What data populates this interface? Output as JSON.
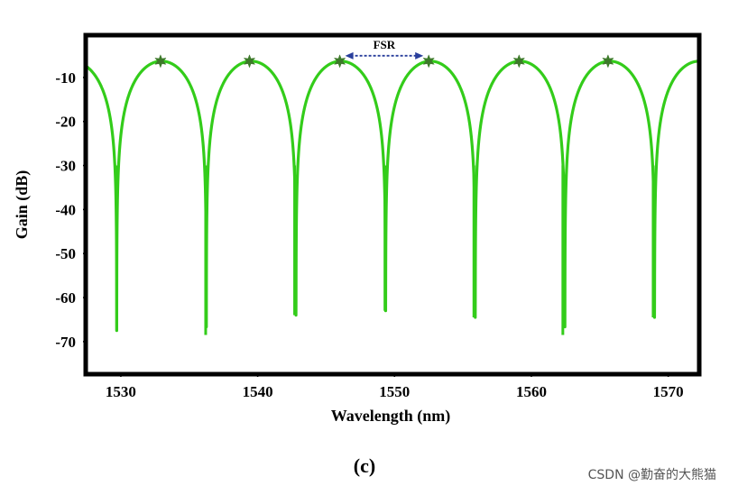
{
  "chart_data": {
    "type": "line",
    "xlabel": "Wavelength (nm)",
    "ylabel": "Gain (dB)",
    "xlim": [
      1527.5,
      1572.2
    ],
    "ylim": [
      -77.2,
      -0.6
    ],
    "xticks": [
      1530,
      1540,
      1550,
      1560,
      1570
    ],
    "yticks": [
      -10,
      -20,
      -30,
      -40,
      -50,
      -60,
      -70
    ],
    "fsr_nm": 6.55,
    "peak_gain_db": -6.3,
    "notches": [
      {
        "x": 1529.7,
        "y": -67.5
      },
      {
        "x": 1536.2,
        "y": -68.5
      },
      {
        "x": 1542.7,
        "y": -64.0
      },
      {
        "x": 1549.3,
        "y": -63.0
      },
      {
        "x": 1555.8,
        "y": -64.5
      },
      {
        "x": 1562.3,
        "y": -68.5
      },
      {
        "x": 1568.9,
        "y": -64.5
      }
    ],
    "peak_markers": [
      {
        "x": 1532.9,
        "y": -6.3
      },
      {
        "x": 1539.4,
        "y": -6.3
      },
      {
        "x": 1546.0,
        "y": -6.3
      },
      {
        "x": 1552.5,
        "y": -6.3
      },
      {
        "x": 1559.1,
        "y": -6.3
      },
      {
        "x": 1565.6,
        "y": -6.3
      }
    ],
    "annotation": {
      "text": "FSR",
      "from": 1546.0,
      "to": 1552.5
    },
    "series_color": "#33cc1a",
    "marker_color": "#3d7a2a",
    "arrow_color": "#2a3f9c",
    "grid": false
  },
  "caption": "(c)",
  "watermark": "CSDN @勤奋的大熊猫"
}
